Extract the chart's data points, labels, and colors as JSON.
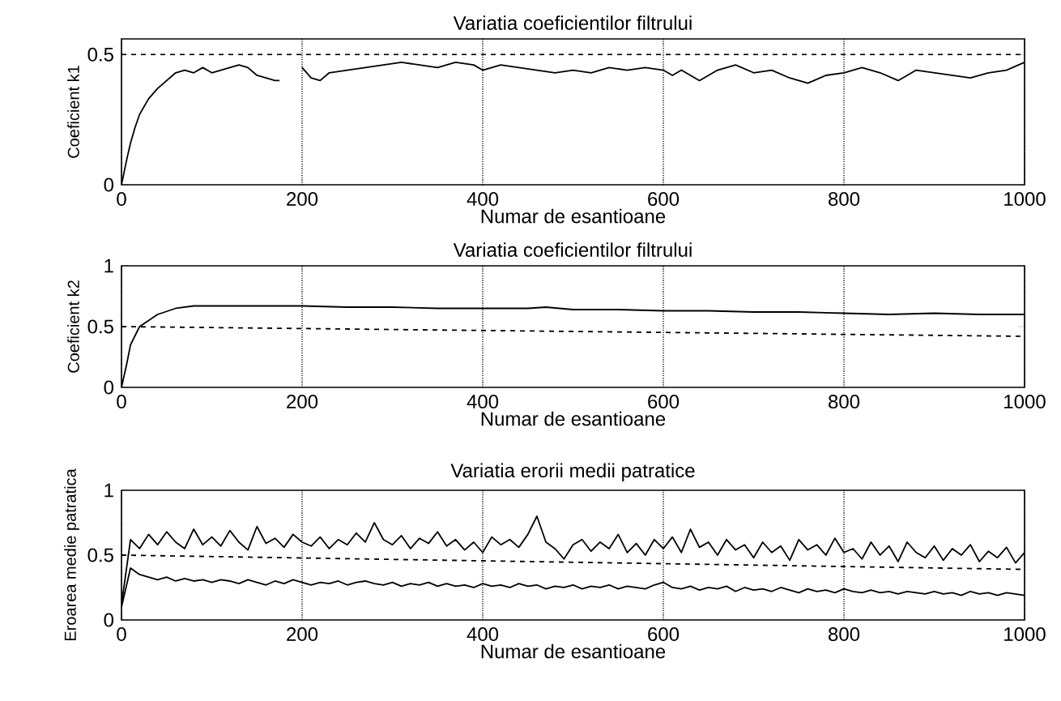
{
  "chart_data": [
    {
      "type": "line",
      "title": "Variatia coeficientilor filtrului",
      "xlabel": "Numar de esantioane",
      "ylabel": "Coeficient k1",
      "grid": "x",
      "xlim": [
        0,
        1000
      ],
      "ylim": [
        0,
        0.56
      ],
      "xticks": [
        0,
        200,
        400,
        600,
        800,
        1000
      ],
      "yticks": [
        0,
        0.5
      ],
      "series": [
        {
          "color": "#000000",
          "line_style": "solid",
          "x": [
            0,
            3,
            6,
            10,
            15,
            20,
            30,
            40,
            50,
            60,
            70,
            80,
            90,
            100,
            110,
            120,
            130,
            140,
            150,
            160,
            170,
            175,
            180,
            200,
            210,
            220,
            230,
            250,
            270,
            290,
            310,
            330,
            350,
            370,
            390,
            400,
            420,
            440,
            460,
            480,
            500,
            520,
            540,
            560,
            580,
            600,
            610,
            620,
            640,
            660,
            680,
            700,
            720,
            740,
            760,
            780,
            800,
            820,
            840,
            860,
            870,
            880,
            900,
            920,
            940,
            960,
            980,
            1000
          ],
          "values": [
            0,
            0.05,
            0.1,
            0.16,
            0.22,
            0.27,
            0.33,
            0.37,
            0.4,
            0.43,
            0.44,
            0.43,
            0.45,
            0.43,
            0.44,
            0.45,
            0.46,
            0.45,
            0.42,
            0.41,
            0.4,
            0.4,
            null,
            0.45,
            0.41,
            0.4,
            0.43,
            0.44,
            0.45,
            0.46,
            0.47,
            0.46,
            0.45,
            0.47,
            0.46,
            0.44,
            0.46,
            0.45,
            0.44,
            0.43,
            0.44,
            0.43,
            0.45,
            0.44,
            0.45,
            0.44,
            0.42,
            0.44,
            0.4,
            0.44,
            0.46,
            0.43,
            0.44,
            0.41,
            0.39,
            0.42,
            0.43,
            0.45,
            0.43,
            0.4,
            0.42,
            0.44,
            0.43,
            0.42,
            0.41,
            0.43,
            0.44,
            0.47
          ]
        },
        {
          "color": "#000000",
          "line_style": "dashed",
          "x": [
            0,
            1000
          ],
          "values": [
            0.5,
            0.5
          ]
        }
      ]
    },
    {
      "type": "line",
      "title": "Variatia coeficientilor filtrului",
      "xlabel": "Numar de esantioane",
      "ylabel": "Coeficient k2",
      "grid": "x",
      "xlim": [
        0,
        1000
      ],
      "ylim": [
        0,
        1
      ],
      "xticks": [
        0,
        200,
        400,
        600,
        800,
        1000
      ],
      "yticks": [
        0,
        0.5,
        1
      ],
      "series": [
        {
          "color": "#000000",
          "line_style": "solid",
          "x": [
            0,
            3,
            6,
            10,
            20,
            40,
            60,
            80,
            100,
            150,
            200,
            250,
            300,
            350,
            400,
            450,
            470,
            500,
            550,
            600,
            650,
            700,
            750,
            800,
            850,
            900,
            950,
            1000
          ],
          "values": [
            0,
            0.1,
            0.2,
            0.35,
            0.5,
            0.6,
            0.65,
            0.67,
            0.67,
            0.67,
            0.67,
            0.66,
            0.66,
            0.65,
            0.65,
            0.65,
            0.66,
            0.64,
            0.64,
            0.63,
            0.63,
            0.62,
            0.62,
            0.61,
            0.6,
            0.61,
            0.6,
            0.6
          ]
        },
        {
          "color": "#000000",
          "line_style": "dashed",
          "x": [
            0,
            1000
          ],
          "values": [
            0.5,
            0.42
          ]
        }
      ]
    },
    {
      "type": "line",
      "title": "Variatia erorii medii patratice",
      "xlabel": "Numar de esantioane",
      "ylabel": "Eroarea medie patratica",
      "grid": "x",
      "xlim": [
        0,
        1000
      ],
      "ylim": [
        0,
        1
      ],
      "xticks": [
        0,
        200,
        400,
        600,
        800,
        1000
      ],
      "yticks": [
        0,
        0.5,
        1
      ],
      "series": [
        {
          "color": "#000000",
          "line_style": "solid",
          "x": [
            0,
            10,
            20,
            30,
            40,
            50,
            60,
            70,
            80,
            90,
            100,
            110,
            120,
            130,
            140,
            150,
            160,
            170,
            180,
            190,
            200,
            210,
            220,
            230,
            240,
            250,
            260,
            270,
            280,
            290,
            300,
            310,
            320,
            330,
            340,
            350,
            360,
            370,
            380,
            390,
            400,
            410,
            420,
            430,
            440,
            450,
            460,
            470,
            480,
            490,
            500,
            510,
            520,
            530,
            540,
            550,
            560,
            570,
            580,
            590,
            600,
            610,
            620,
            630,
            640,
            650,
            660,
            670,
            680,
            690,
            700,
            710,
            720,
            730,
            740,
            750,
            760,
            770,
            780,
            790,
            800,
            810,
            820,
            830,
            840,
            850,
            860,
            870,
            880,
            890,
            900,
            910,
            920,
            930,
            940,
            950,
            960,
            970,
            980,
            990,
            1000
          ],
          "values": [
            0.12,
            0.62,
            0.55,
            0.66,
            0.58,
            0.68,
            0.6,
            0.55,
            0.7,
            0.58,
            0.64,
            0.57,
            0.69,
            0.6,
            0.54,
            0.72,
            0.59,
            0.63,
            0.56,
            0.66,
            0.6,
            0.57,
            0.64,
            0.55,
            0.62,
            0.58,
            0.67,
            0.6,
            0.75,
            0.62,
            0.58,
            0.65,
            0.55,
            0.63,
            0.59,
            0.68,
            0.57,
            0.62,
            0.54,
            0.6,
            0.52,
            0.64,
            0.58,
            0.62,
            0.56,
            0.66,
            0.8,
            0.6,
            0.55,
            0.47,
            0.58,
            0.62,
            0.53,
            0.6,
            0.55,
            0.66,
            0.52,
            0.59,
            0.5,
            0.62,
            0.55,
            0.64,
            0.52,
            0.7,
            0.56,
            0.6,
            0.5,
            0.62,
            0.54,
            0.58,
            0.48,
            0.6,
            0.52,
            0.57,
            0.46,
            0.62,
            0.54,
            0.58,
            0.5,
            0.63,
            0.52,
            0.55,
            0.47,
            0.6,
            0.5,
            0.57,
            0.45,
            0.6,
            0.52,
            0.48,
            0.57,
            0.46,
            0.55,
            0.5,
            0.58,
            0.45,
            0.53,
            0.48,
            0.56,
            0.44,
            0.52
          ]
        },
        {
          "color": "#000000",
          "line_style": "solid",
          "x": [
            0,
            10,
            20,
            30,
            40,
            50,
            60,
            70,
            80,
            90,
            100,
            110,
            120,
            130,
            140,
            150,
            160,
            170,
            180,
            190,
            200,
            210,
            220,
            230,
            240,
            250,
            260,
            270,
            280,
            290,
            300,
            310,
            320,
            330,
            340,
            350,
            360,
            370,
            380,
            390,
            400,
            410,
            420,
            430,
            440,
            450,
            460,
            470,
            480,
            490,
            500,
            510,
            520,
            530,
            540,
            550,
            560,
            570,
            580,
            590,
            600,
            610,
            620,
            630,
            640,
            650,
            660,
            670,
            680,
            690,
            700,
            710,
            720,
            730,
            740,
            750,
            760,
            770,
            780,
            790,
            800,
            810,
            820,
            830,
            840,
            850,
            860,
            870,
            880,
            890,
            900,
            910,
            920,
            930,
            940,
            950,
            960,
            970,
            980,
            990,
            1000
          ],
          "values": [
            0.1,
            0.4,
            0.35,
            0.33,
            0.31,
            0.33,
            0.3,
            0.32,
            0.3,
            0.31,
            0.29,
            0.31,
            0.3,
            0.28,
            0.31,
            0.29,
            0.27,
            0.3,
            0.28,
            0.31,
            0.29,
            0.27,
            0.29,
            0.28,
            0.3,
            0.27,
            0.29,
            0.3,
            0.28,
            0.27,
            0.29,
            0.26,
            0.28,
            0.27,
            0.29,
            0.26,
            0.28,
            0.26,
            0.27,
            0.25,
            0.28,
            0.26,
            0.27,
            0.25,
            0.28,
            0.26,
            0.27,
            0.24,
            0.26,
            0.25,
            0.27,
            0.24,
            0.26,
            0.25,
            0.27,
            0.24,
            0.26,
            0.25,
            0.24,
            0.27,
            0.29,
            0.25,
            0.24,
            0.26,
            0.23,
            0.25,
            0.24,
            0.26,
            0.22,
            0.25,
            0.23,
            0.24,
            0.22,
            0.25,
            0.23,
            0.21,
            0.24,
            0.22,
            0.23,
            0.21,
            0.24,
            0.22,
            0.21,
            0.23,
            0.21,
            0.22,
            0.2,
            0.22,
            0.21,
            0.2,
            0.22,
            0.2,
            0.21,
            0.19,
            0.22,
            0.2,
            0.21,
            0.19,
            0.21,
            0.2,
            0.19
          ]
        },
        {
          "color": "#000000",
          "line_style": "dashed",
          "x": [
            0,
            1000
          ],
          "values": [
            0.5,
            0.39
          ]
        }
      ]
    }
  ]
}
